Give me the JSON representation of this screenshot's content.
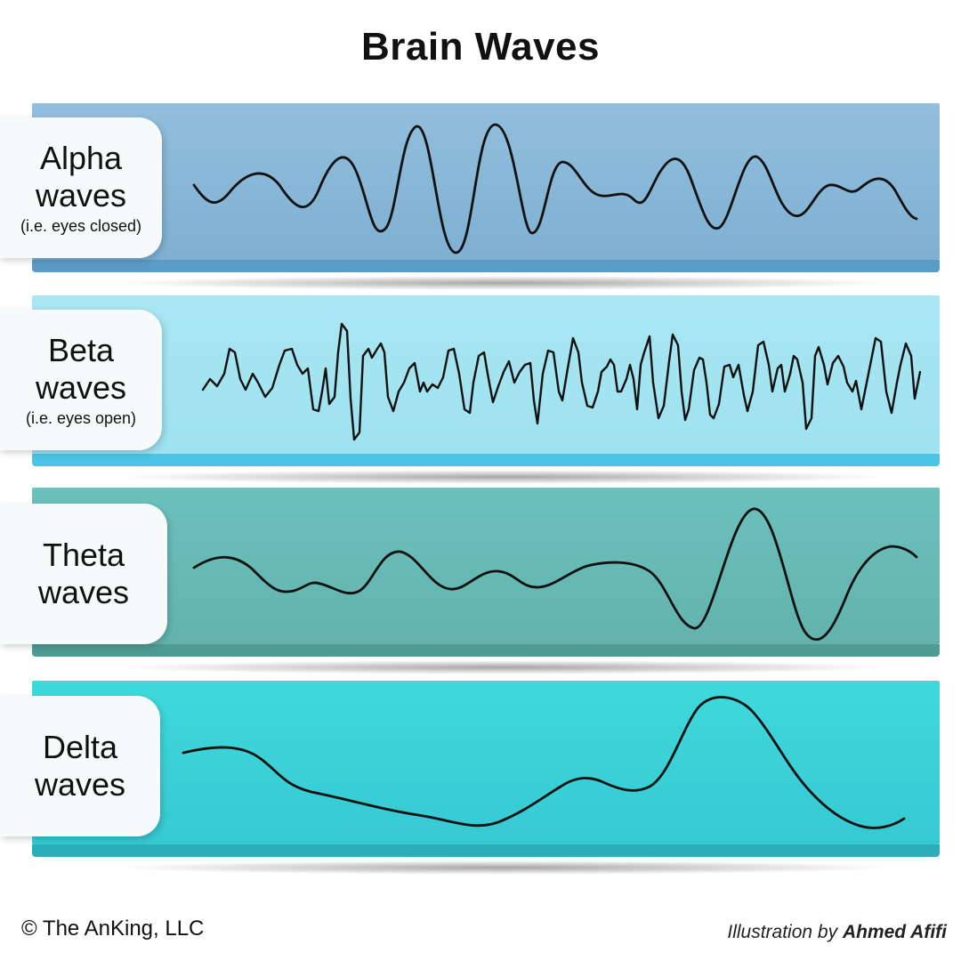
{
  "title": "Brain Waves",
  "bands": [
    {
      "id": "alpha",
      "label_line1": "Alpha",
      "label_line2": "waves",
      "sublabel": "(i.e. eyes closed)",
      "face_top": "#92bedc",
      "face_bottom": "#7fb0d2",
      "edge_color": "#5a9cc6"
    },
    {
      "id": "beta",
      "label_line1": "Beta",
      "label_line2": "waves",
      "sublabel": "(i.e. eyes open)",
      "face_top": "#a8e6f2",
      "face_bottom": "#9fe2f0",
      "edge_color": "#4cc4e6"
    },
    {
      "id": "theta",
      "label_line1": "Theta",
      "label_line2": "waves",
      "sublabel": "",
      "face_top": "#6cc0bd",
      "face_bottom": "#63b3ac",
      "edge_color": "#4f9c94"
    },
    {
      "id": "delta",
      "label_line1": "Delta",
      "label_line2": "waves",
      "sublabel": "",
      "face_top": "#3fd9dc",
      "face_bottom": "#36c9d2",
      "edge_color": "#2aaeb9"
    }
  ],
  "footer": {
    "copyright": "© The AnKing, LLC",
    "credit_prefix": "Illustration by",
    "credit_author": "Ahmed Afifi"
  }
}
